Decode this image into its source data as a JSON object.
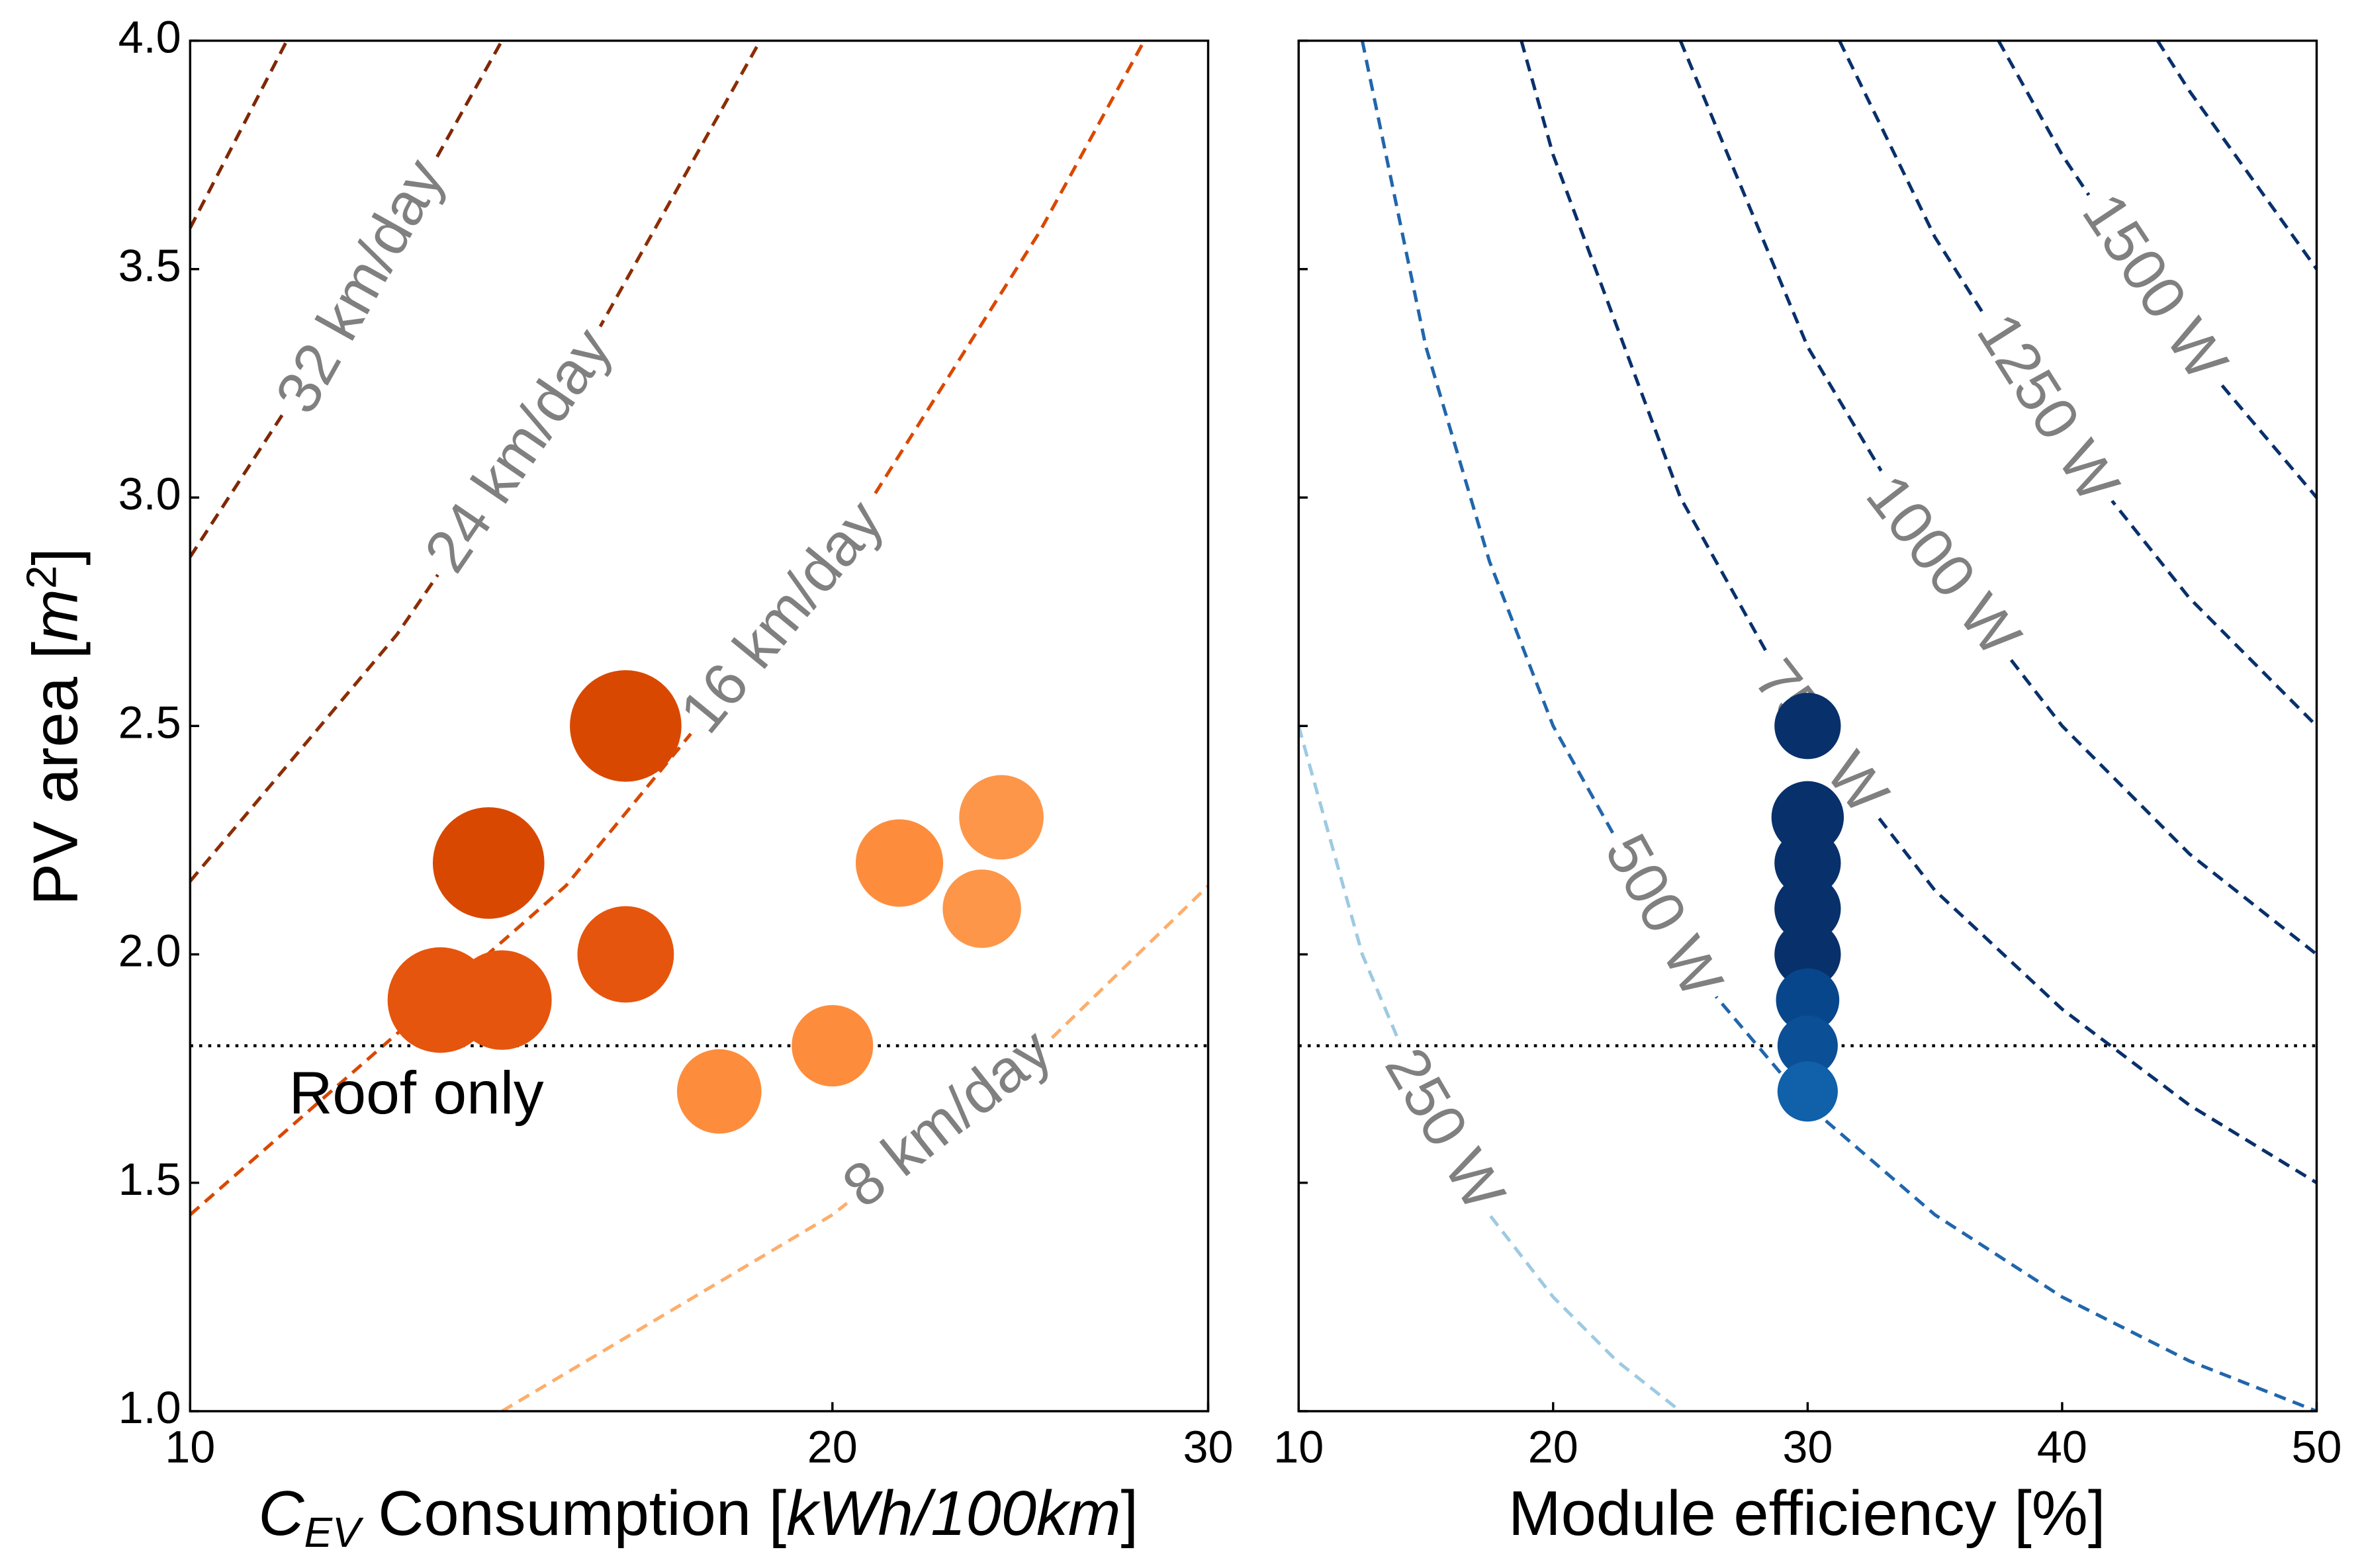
{
  "chart_data": [
    {
      "type": "scatter",
      "xscale": "log",
      "xlim": [
        10,
        30
      ],
      "xticks": [
        10,
        20,
        30
      ],
      "ylim": [
        1,
        4
      ],
      "yticks": [
        {
          "value": 1,
          "label": "1.0"
        },
        {
          "value": 1.5,
          "label": "1.5"
        },
        {
          "value": 2,
          "label": "2.0"
        },
        {
          "value": 2.5,
          "label": "2.5"
        },
        {
          "value": 3,
          "label": "3.0"
        },
        {
          "value": 3.5,
          "label": "3.5"
        },
        {
          "value": 4,
          "label": "4.0"
        }
      ],
      "show_ytick_labels": true,
      "xlabel": [
        "C",
        "EV",
        " Consumption [",
        "kWh/100km",
        "]"
      ],
      "ylabel": [
        "PV area [",
        "m",
        "2",
        "]"
      ],
      "x": [
        13.1,
        14.0,
        13.8,
        16.0,
        16.0,
        17.7,
        20.0,
        21.5,
        23.5,
        24.0
      ],
      "values": [
        1.9,
        1.9,
        2.2,
        2.5,
        2.0,
        1.7,
        1.8,
        2.2,
        2.1,
        2.3
      ],
      "sizes": [
        35,
        33,
        37,
        37,
        32,
        28,
        27,
        29,
        26,
        28
      ],
      "colors": [
        "#e6550d",
        "#e6550d",
        "#d94801",
        "#d94801",
        "#e6550d",
        "#fd8d3c",
        "#fd8d3c",
        "#fd8d3c",
        "#fd9649",
        "#fd9649"
      ],
      "hlines": [
        {
          "y": 1.8,
          "label": "Roof only"
        }
      ],
      "contours": [
        {
          "name": "8 km/day",
          "color": "#fdae6b",
          "x": [
            14,
            20,
            25,
            30
          ],
          "values": [
            1.0,
            1.43,
            1.79,
            2.15
          ]
        },
        {
          "name": "16 km/day",
          "color": "#d94801",
          "x": [
            10,
            15,
            20,
            25,
            28
          ],
          "values": [
            1.43,
            2.15,
            2.86,
            3.58,
            4.0
          ]
        },
        {
          "name": "24 km/day",
          "color": "#8c2d04",
          "x": [
            10,
            12.5,
            15,
            18.5
          ],
          "values": [
            2.16,
            2.7,
            3.24,
            4.0
          ]
        },
        {
          "name": "32 km/day",
          "color": "#7f2704",
          "x": [
            10,
            12,
            14
          ],
          "values": [
            2.87,
            3.44,
            4.0
          ]
        },
        {
          "name": null,
          "color": "#7f2704",
          "x": [
            10,
            11.1
          ],
          "values": [
            3.59,
            4.0
          ]
        }
      ]
    },
    {
      "type": "scatter",
      "xscale": "linear",
      "xlim": [
        10,
        50
      ],
      "xticks": [
        10,
        20,
        30,
        40,
        50
      ],
      "ylim": [
        1,
        4
      ],
      "yticks": [
        1,
        1.5,
        2,
        2.5,
        3,
        3.5,
        4
      ],
      "show_ytick_labels": false,
      "xlabel": [
        "Module efficiency [%]"
      ],
      "x": [
        30,
        30,
        30,
        30,
        30,
        30,
        30,
        30
      ],
      "values": [
        2.5,
        2.3,
        2.2,
        2.1,
        2.0,
        1.9,
        1.8,
        1.7
      ],
      "sizes": [
        22,
        24,
        22,
        22,
        22,
        21,
        20,
        20
      ],
      "colors": [
        "#08306b",
        "#08306b",
        "#08306b",
        "#08306b",
        "#08306b",
        "#08468b",
        "#0b4f96",
        "#1060aa"
      ],
      "hlines": [
        {
          "y": 1.8
        }
      ],
      "contours": [
        {
          "name": "250 W",
          "color": "#9ecae1",
          "x": [
            10,
            12.5,
            15,
            17.5,
            20,
            22.5,
            25
          ],
          "values": [
            2.5,
            2.0,
            1.67,
            1.43,
            1.25,
            1.11,
            1.0
          ]
        },
        {
          "name": "500 W",
          "color": "#2166ac",
          "x": [
            12.5,
            15,
            17.5,
            20,
            25,
            30,
            35,
            40,
            45,
            50
          ],
          "values": [
            4.0,
            3.33,
            2.86,
            2.5,
            2.0,
            1.67,
            1.43,
            1.25,
            1.11,
            1.0
          ]
        },
        {
          "name": "750 W",
          "color": "#08306b",
          "x": [
            18.75,
            20,
            25,
            30,
            35,
            40,
            45,
            50
          ],
          "values": [
            4.0,
            3.75,
            3.0,
            2.5,
            2.14,
            1.88,
            1.67,
            1.5
          ]
        },
        {
          "name": "1000 W",
          "color": "#08306b",
          "x": [
            25,
            30,
            35,
            40,
            45,
            50
          ],
          "values": [
            4.0,
            3.33,
            2.86,
            2.5,
            2.22,
            2.0
          ]
        },
        {
          "name": "1250 W",
          "color": "#08306b",
          "x": [
            31.25,
            35,
            40,
            45,
            50
          ],
          "values": [
            4.0,
            3.57,
            3.13,
            2.78,
            2.5
          ]
        },
        {
          "name": "1500 W",
          "color": "#08306b",
          "x": [
            37.5,
            40,
            45,
            50
          ],
          "values": [
            4.0,
            3.75,
            3.33,
            3.0
          ]
        },
        {
          "name": null,
          "color": "#08306b",
          "x": [
            43.75,
            45,
            50
          ],
          "values": [
            4.0,
            3.89,
            3.5
          ]
        }
      ]
    }
  ]
}
